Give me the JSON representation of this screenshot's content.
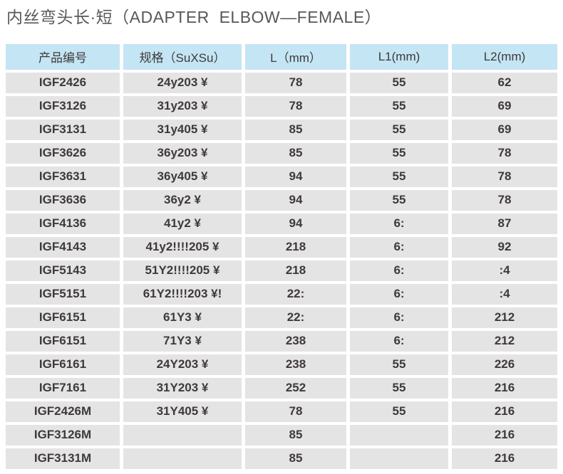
{
  "page": {
    "title": "内丝弯头长·短（ADAPTER  ELBOW—FEMALE）"
  },
  "table": {
    "columns": [
      "产品编号",
      "规格（SuXSu）",
      "L（mm）",
      "L1(mm)",
      "L2(mm)"
    ],
    "rows": [
      [
        "IGF2426",
        "24y203 ¥",
        "78",
        "55",
        "62"
      ],
      [
        "IGF3126",
        "31y203 ¥",
        "78",
        "55",
        "69"
      ],
      [
        "IGF3131",
        "31y405 ¥",
        "85",
        "55",
        "69"
      ],
      [
        "IGF3626",
        "36y203 ¥",
        "85",
        "55",
        "78"
      ],
      [
        "IGF3631",
        "36y405 ¥",
        "94",
        "55",
        "78"
      ],
      [
        "IGF3636",
        "36y2 ¥",
        "94",
        "55",
        "78"
      ],
      [
        "IGF4136",
        "41y2 ¥",
        "94",
        "6:",
        "87"
      ],
      [
        "IGF4143",
        "41y2!!!!205 ¥",
        "218",
        "6:",
        "92"
      ],
      [
        "IGF5143",
        "51Y2!!!!205 ¥",
        "218",
        "6:",
        ":4"
      ],
      [
        "IGF5151",
        "61Y2!!!!203 ¥!",
        "22:",
        "6:",
        ":4"
      ],
      [
        "IGF6151",
        "61Y3 ¥",
        "22:",
        "6:",
        "212"
      ],
      [
        "IGF6151",
        "71Y3 ¥",
        "238",
        "6:",
        "212"
      ],
      [
        "IGF6161",
        "24Y203 ¥",
        "238",
        "55",
        "226"
      ],
      [
        "IGF7161",
        "31Y203 ¥",
        "252",
        "55",
        "216"
      ],
      [
        "IGF2426M",
        "31Y405 ¥",
        "78",
        "55",
        "216"
      ],
      [
        "IGF3126M",
        "",
        "85",
        "",
        "216"
      ],
      [
        "IGF3131M",
        "",
        "85",
        "",
        "216"
      ]
    ]
  },
  "colors": {
    "header_bg": "#c4e5f4",
    "row_bg": "#e5e4e4",
    "cell_text": "#3e3a39",
    "title_text": "#595757",
    "page_bg": "#ffffff"
  }
}
